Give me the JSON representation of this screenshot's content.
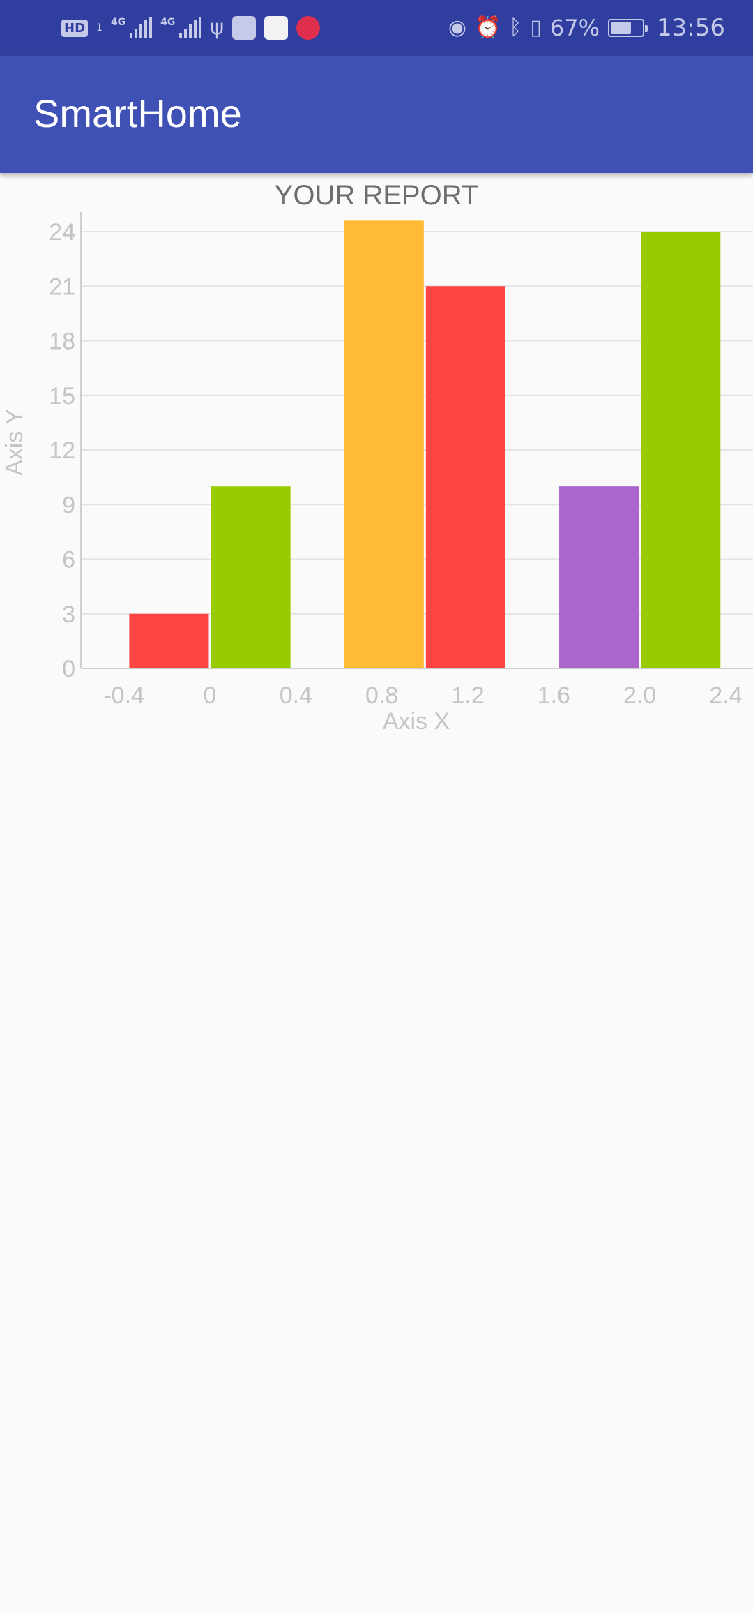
{
  "status_bar": {
    "hd_label": "HD",
    "sim_number": "1",
    "network_1": "4G",
    "network_2": "4G",
    "battery_percent": "67%",
    "battery_level": 0.67,
    "time": "13:56",
    "icons": [
      "usb-icon",
      "huawei-app-icon",
      "zhihu-app-icon",
      "xiaohongshu-app-icon",
      "eye-comfort-icon",
      "alarm-icon",
      "bluetooth-icon",
      "vibrate-icon",
      "battery-charging-icon"
    ]
  },
  "app_bar": {
    "title": "SmartHome",
    "color": "#3f51b5",
    "status_color": "#303f9f"
  },
  "chart_data": {
    "type": "bar",
    "title": "YOUR REPORT",
    "xlabel": "Axis X",
    "ylabel": "Axis Y",
    "xlim": [
      -0.6,
      2.4
    ],
    "ylim": [
      0,
      24
    ],
    "x_ticks": [
      "-0.4",
      "0",
      "0.4",
      "0.8",
      "1.2",
      "1.6",
      "2.0",
      "2.4"
    ],
    "y_ticks": [
      "0",
      "3",
      "6",
      "9",
      "12",
      "15",
      "18",
      "21",
      "24"
    ],
    "grid": true,
    "bar_width": 0.37,
    "bars": [
      {
        "x": -0.19,
        "value": 3,
        "color": "#ff4444"
      },
      {
        "x": 0.19,
        "value": 10,
        "color": "#99cc00"
      },
      {
        "x": 0.81,
        "value": 25,
        "color": "#ffbb33"
      },
      {
        "x": 1.19,
        "value": 21,
        "color": "#ff4444"
      },
      {
        "x": 1.81,
        "value": 10,
        "color": "#aa66cc"
      },
      {
        "x": 2.19,
        "value": 24,
        "color": "#99cc00"
      }
    ]
  }
}
